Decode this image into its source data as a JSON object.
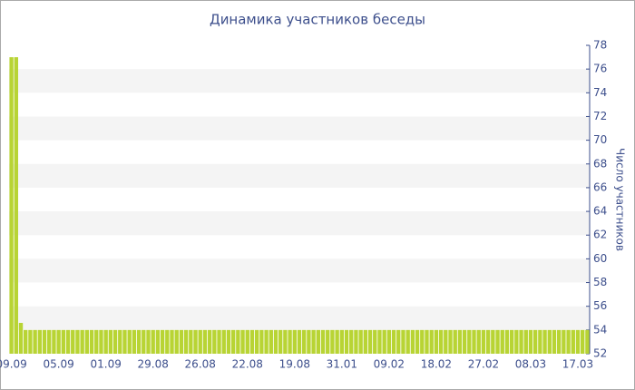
{
  "chart_data": {
    "type": "bar",
    "title": "Динамика участников беседы",
    "y_axis_label": "Число участников",
    "categories": [
      "09.09",
      null,
      null,
      null,
      null,
      null,
      null,
      null,
      null,
      null,
      "05.09",
      null,
      null,
      null,
      null,
      null,
      null,
      null,
      null,
      null,
      "01.09",
      null,
      null,
      null,
      null,
      null,
      null,
      null,
      null,
      null,
      "29.08",
      null,
      null,
      null,
      null,
      null,
      null,
      null,
      null,
      null,
      "26.08",
      null,
      null,
      null,
      null,
      null,
      null,
      null,
      null,
      null,
      "22.08",
      null,
      null,
      null,
      null,
      null,
      null,
      null,
      null,
      null,
      "19.08",
      null,
      null,
      null,
      null,
      null,
      null,
      null,
      null,
      null,
      "31.01",
      null,
      null,
      null,
      null,
      null,
      null,
      null,
      null,
      null,
      "09.02",
      null,
      null,
      null,
      null,
      null,
      null,
      null,
      null,
      null,
      "18.02",
      null,
      null,
      null,
      null,
      null,
      null,
      null,
      null,
      null,
      "27.02",
      null,
      null,
      null,
      null,
      null,
      null,
      null,
      null,
      null,
      "08.03",
      null,
      null,
      null,
      null,
      null,
      null,
      null,
      null,
      null,
      "17.03",
      null,
      null
    ],
    "values": [
      77,
      77,
      54.6,
      54,
      54,
      54,
      54,
      54,
      54,
      54,
      54,
      54,
      54,
      54,
      54,
      54,
      54,
      54,
      54,
      54,
      54,
      54,
      54,
      54,
      54,
      54,
      54,
      54,
      54,
      54,
      54,
      54,
      54,
      54,
      54,
      54,
      54,
      54,
      54,
      54,
      54,
      54,
      54,
      54,
      54,
      54,
      54,
      54,
      54,
      54,
      54,
      54,
      54,
      54,
      54,
      54,
      54,
      54,
      54,
      54,
      54,
      54,
      54,
      54,
      54,
      54,
      54,
      54,
      54,
      54,
      54,
      54,
      54,
      54,
      54,
      54,
      54,
      54,
      54,
      54,
      54,
      54,
      54,
      54,
      54,
      54,
      54,
      54,
      54,
      54,
      54,
      54,
      54,
      54,
      54,
      54,
      54,
      54,
      54,
      54,
      54,
      54,
      54,
      54,
      54,
      54,
      54,
      54,
      54,
      54,
      54,
      54,
      54,
      54,
      54,
      54,
      54,
      54,
      54,
      54,
      54,
      54,
      54
    ],
    "color": "#b8d434",
    "ylim": [
      52,
      78
    ],
    "yticks": [
      52,
      54,
      56,
      58,
      60,
      62,
      64,
      66,
      68,
      70,
      72,
      74,
      76,
      78
    ],
    "y_axis_side": "right",
    "grid": "bands"
  }
}
